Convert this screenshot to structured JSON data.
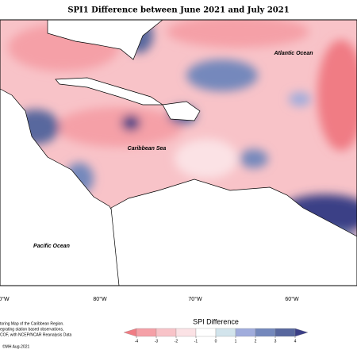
{
  "title": "SPI1 Difference between June 2021 and July 2021",
  "map": {
    "labels": [
      "Atlantic Ocean",
      "Caribbean Sea",
      "Pacific Ocean"
    ],
    "lon_labels": [
      "0°W",
      "80°W",
      "70°W",
      "60°W"
    ]
  },
  "legend": {
    "title": "SPI Difference",
    "ticks": [
      -4,
      -3,
      -2,
      -1,
      0,
      1,
      2,
      3,
      4
    ],
    "colors": [
      "#f07c84",
      "#f5a0a7",
      "#f8c3c8",
      "#fbe2e5",
      "#ffffff",
      "#d2e4ec",
      "#a0acdc",
      "#7488bc",
      "#58679e",
      "#3b3f86"
    ]
  },
  "footnote": [
    "toring Map of the Caribbean Region.",
    "egrating station based observations,",
    "COF, with NCEP/NCAR Reanalysis Data",
    "©MH Aug-2021"
  ]
}
